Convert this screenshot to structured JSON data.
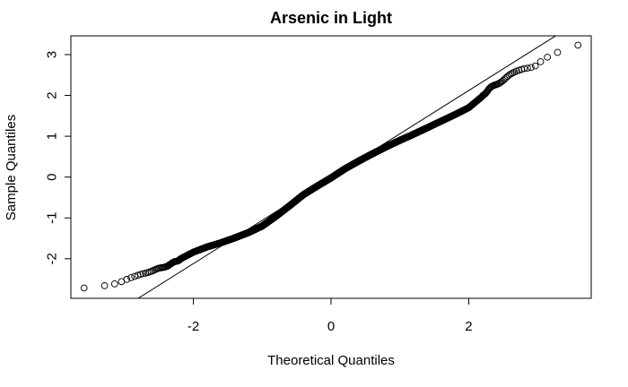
{
  "chart_data": {
    "type": "scatter",
    "subtype": "normal-qq",
    "title": "Arsenic in Light",
    "xlabel": "Theoretical Quantiles",
    "ylabel": "Sample Quantiles",
    "xlim": [
      -3.78,
      3.78
    ],
    "ylim": [
      -2.97,
      3.46
    ],
    "x_ticks": [
      -2,
      0,
      2
    ],
    "x_tick_labels": [
      "-2",
      "0",
      "2"
    ],
    "y_ticks": [
      -2,
      -1,
      0,
      1,
      2,
      3
    ],
    "y_tick_labels": [
      "-2",
      "-1",
      "0",
      "1",
      "2",
      "3"
    ],
    "reference_line": {
      "intercept": 0.0,
      "slope": 1.06
    },
    "series": [
      {
        "name": "sample",
        "n_points": 3000,
        "quantile_curve": {
          "x": [
            -3.63,
            -3.35,
            -3.2,
            -3.05,
            -2.9,
            -2.75,
            -2.6,
            -2.45,
            -2.3,
            -2.15,
            -2.0,
            -1.8,
            -1.6,
            -1.4,
            -1.2,
            -1.0,
            -0.8,
            -0.6,
            -0.4,
            -0.2,
            0.0,
            0.2,
            0.4,
            0.6,
            0.8,
            1.0,
            1.2,
            1.4,
            1.6,
            1.8,
            2.0,
            2.2,
            2.3,
            2.4,
            2.5,
            2.6,
            2.7,
            2.8,
            2.95,
            3.1,
            3.35,
            3.63
          ],
          "y": [
            -2.73,
            -2.68,
            -2.66,
            -2.58,
            -2.47,
            -2.36,
            -2.3,
            -2.22,
            -2.11,
            -1.97,
            -1.84,
            -1.71,
            -1.61,
            -1.49,
            -1.36,
            -1.2,
            -0.96,
            -0.7,
            -0.43,
            -0.22,
            -0.02,
            0.2,
            0.39,
            0.57,
            0.74,
            0.9,
            1.05,
            1.21,
            1.37,
            1.53,
            1.7,
            1.98,
            2.17,
            2.27,
            2.37,
            2.5,
            2.6,
            2.67,
            2.71,
            2.9,
            3.09,
            3.24
          ]
        }
      }
    ]
  }
}
